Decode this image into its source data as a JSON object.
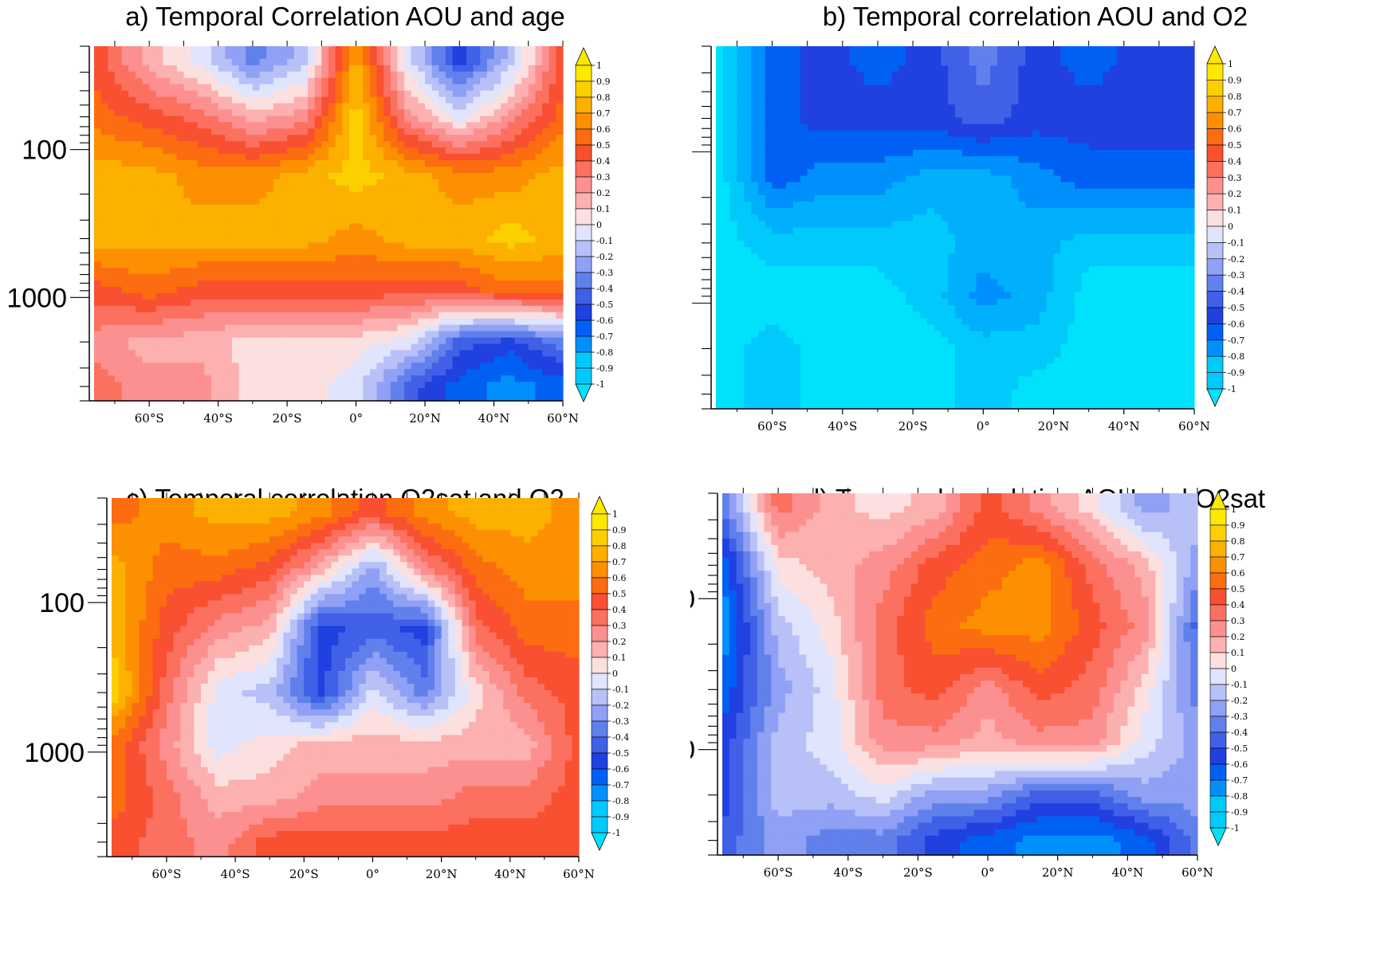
{
  "chart_data": [
    {
      "type": "heatmap",
      "title": "a) Temporal Correlation AOU and age",
      "xlabel": "",
      "ylabel": "",
      "x_ticks": [
        "60°S",
        "40°S",
        "20°S",
        "0°",
        "20°N",
        "40°N",
        "60°N"
      ],
      "x_tick_values": [
        -60,
        -40,
        -20,
        0,
        20,
        40,
        60
      ],
      "xlim": [
        -76,
        60
      ],
      "y_scale": "log",
      "y_ticks": [
        "100",
        "1000"
      ],
      "y_tick_values": [
        100,
        1000
      ],
      "ylim": [
        5000,
        20
      ],
      "y_inverted": true,
      "colorbar_ticks": [
        1,
        0.9,
        0.8,
        0.7,
        0.6,
        0.5,
        0.4,
        0.3,
        0.2,
        0.1,
        0,
        -0.1,
        -0.2,
        -0.3,
        -0.4,
        -0.5,
        -0.6,
        -0.7,
        -0.8,
        -0.9,
        -1
      ],
      "lat": [
        -75,
        -60,
        -45,
        -30,
        -15,
        0,
        15,
        30,
        45,
        60
      ],
      "depth": [
        25,
        60,
        150,
        400,
        900,
        2000,
        4000
      ],
      "values": [
        [
          0.5,
          0.2,
          0.0,
          -0.3,
          -0.1,
          0.8,
          0.0,
          -0.5,
          -0.1,
          0.5
        ],
        [
          0.6,
          0.5,
          0.4,
          0.2,
          0.3,
          0.9,
          0.3,
          0.0,
          0.3,
          0.6
        ],
        [
          0.8,
          0.8,
          0.7,
          0.7,
          0.8,
          0.9,
          0.8,
          0.7,
          0.7,
          0.8
        ],
        [
          0.8,
          0.8,
          0.8,
          0.8,
          0.8,
          0.7,
          0.8,
          0.8,
          0.9,
          0.8
        ],
        [
          0.5,
          0.6,
          0.5,
          0.5,
          0.5,
          0.5,
          0.5,
          0.5,
          0.6,
          0.6
        ],
        [
          0.3,
          0.2,
          0.2,
          0.1,
          0.1,
          0.1,
          0.0,
          -0.4,
          -0.5,
          -0.3
        ],
        [
          0.4,
          0.3,
          0.3,
          0.1,
          0.1,
          0.0,
          -0.4,
          -0.6,
          -0.7,
          -0.6
        ]
      ]
    },
    {
      "type": "heatmap",
      "title": "b) Temporal correlation AOU and O2",
      "xlabel": "",
      "ylabel": "",
      "x_ticks": [
        "60°S",
        "40°S",
        "20°S",
        "0°",
        "20°N",
        "40°N",
        "60°N"
      ],
      "x_tick_values": [
        -60,
        -40,
        -20,
        0,
        20,
        40,
        60
      ],
      "xlim": [
        -76,
        60
      ],
      "y_scale": "log",
      "y_ticks": [
        "100",
        "1000"
      ],
      "y_tick_values": [
        100,
        1000
      ],
      "ylim": [
        5000,
        20
      ],
      "y_inverted": true,
      "colorbar_ticks": [
        1,
        0.9,
        0.8,
        0.7,
        0.6,
        0.5,
        0.4,
        0.3,
        0.2,
        0.1,
        0,
        -0.1,
        -0.2,
        -0.3,
        -0.4,
        -0.5,
        -0.6,
        -0.7,
        -0.8,
        -0.9,
        -1
      ],
      "lat": [
        -75,
        -60,
        -45,
        -30,
        -15,
        0,
        15,
        30,
        45,
        60
      ],
      "depth": [
        25,
        60,
        150,
        400,
        900,
        2000,
        4000
      ],
      "values": [
        [
          -1.0,
          -0.6,
          -0.5,
          -0.6,
          -0.5,
          -0.3,
          -0.5,
          -0.6,
          -0.5,
          -0.5
        ],
        [
          -1.0,
          -0.6,
          -0.5,
          -0.5,
          -0.5,
          -0.4,
          -0.5,
          -0.5,
          -0.5,
          -0.5
        ],
        [
          -1.0,
          -0.6,
          -0.7,
          -0.7,
          -0.8,
          -0.8,
          -0.7,
          -0.6,
          -0.6,
          -0.6
        ],
        [
          -1.0,
          -0.9,
          -0.9,
          -0.9,
          -0.9,
          -0.8,
          -0.8,
          -0.9,
          -0.9,
          -0.9
        ],
        [
          -1.0,
          -1.0,
          -1.0,
          -1.0,
          -0.9,
          -0.7,
          -0.8,
          -1.0,
          -1.0,
          -1.0
        ],
        [
          -1.0,
          -0.9,
          -1.0,
          -1.0,
          -1.0,
          -0.9,
          -0.9,
          -1.0,
          -1.0,
          -1.0
        ],
        [
          -1.0,
          -0.9,
          -1.0,
          -1.0,
          -1.0,
          -0.9,
          -1.0,
          -1.0,
          -1.0,
          -1.0
        ]
      ]
    },
    {
      "type": "heatmap",
      "title": "c) Temporal correlation O2sat and O2",
      "xlabel": "",
      "ylabel": "",
      "x_ticks": [
        "60°S",
        "40°S",
        "20°S",
        "0°",
        "20°N",
        "40°N",
        "60°N"
      ],
      "x_tick_values": [
        -60,
        -40,
        -20,
        0,
        20,
        40,
        60
      ],
      "xlim": [
        -76,
        60
      ],
      "y_scale": "log",
      "y_ticks": [
        "100",
        "1000"
      ],
      "y_tick_values": [
        100,
        1000
      ],
      "ylim": [
        5000,
        20
      ],
      "y_inverted": true,
      "colorbar_ticks": [
        1,
        0.9,
        0.8,
        0.7,
        0.6,
        0.5,
        0.4,
        0.3,
        0.2,
        0.1,
        0,
        -0.1,
        -0.2,
        -0.3,
        -0.4,
        -0.5,
        -0.6,
        -0.7,
        -0.8,
        -0.9,
        -1
      ],
      "lat": [
        -75,
        -60,
        -45,
        -30,
        -15,
        0,
        15,
        30,
        45,
        60
      ],
      "depth": [
        25,
        60,
        150,
        400,
        900,
        2000,
        4000
      ],
      "values": [
        [
          0.6,
          0.7,
          0.8,
          0.8,
          0.7,
          0.5,
          0.7,
          0.8,
          0.8,
          0.7
        ],
        [
          0.8,
          0.6,
          0.6,
          0.5,
          0.2,
          -0.2,
          0.3,
          0.6,
          0.7,
          0.7
        ],
        [
          0.8,
          0.5,
          0.3,
          0.2,
          -0.5,
          -0.4,
          -0.5,
          0.4,
          0.6,
          0.6
        ],
        [
          0.9,
          0.4,
          0.0,
          -0.1,
          -0.5,
          0.0,
          -0.3,
          0.1,
          0.4,
          0.5
        ],
        [
          0.6,
          0.3,
          0.0,
          0.1,
          0.2,
          0.2,
          0.2,
          0.2,
          0.2,
          0.5
        ],
        [
          0.6,
          0.4,
          0.2,
          0.2,
          0.3,
          0.3,
          0.3,
          0.4,
          0.4,
          0.5
        ],
        [
          0.5,
          0.4,
          0.3,
          0.5,
          0.5,
          0.5,
          0.5,
          0.5,
          0.5,
          0.5
        ]
      ]
    },
    {
      "type": "heatmap",
      "title": "d) Temporal correlation AOU and O2sat",
      "xlabel": "",
      "ylabel": "",
      "x_ticks": [
        "60°S",
        "40°S",
        "20°S",
        "0°",
        "20°N",
        "40°N",
        "60°N"
      ],
      "x_tick_values": [
        -60,
        -40,
        -20,
        0,
        20,
        40,
        60
      ],
      "xlim": [
        -76,
        60
      ],
      "y_scale": "log",
      "y_ticks": [
        "100",
        "1000"
      ],
      "y_tick_values": [
        100,
        1000
      ],
      "ylim": [
        5000,
        20
      ],
      "y_inverted": true,
      "colorbar_ticks": [
        1,
        0.9,
        0.8,
        0.7,
        0.6,
        0.5,
        0.4,
        0.3,
        0.2,
        0.1,
        0,
        -0.1,
        -0.2,
        -0.3,
        -0.4,
        -0.5,
        -0.6,
        -0.7,
        -0.8,
        -0.9,
        -1
      ],
      "lat": [
        -75,
        -60,
        -45,
        -30,
        -15,
        0,
        15,
        30,
        45,
        60
      ],
      "depth": [
        25,
        60,
        150,
        400,
        900,
        2000,
        4000
      ],
      "values": [
        [
          -0.3,
          0.4,
          0.2,
          0.1,
          0.2,
          0.5,
          0.3,
          0.1,
          -0.2,
          -0.1
        ],
        [
          -0.6,
          0.1,
          0.2,
          0.3,
          0.5,
          0.6,
          0.7,
          0.4,
          0.2,
          -0.2
        ],
        [
          -0.7,
          -0.1,
          0.1,
          0.4,
          0.6,
          0.7,
          0.7,
          0.5,
          0.3,
          -0.4
        ],
        [
          -0.6,
          -0.2,
          0.0,
          0.4,
          0.5,
          0.3,
          0.5,
          0.4,
          0.1,
          -0.3
        ],
        [
          -0.5,
          -0.1,
          0.0,
          0.3,
          0.3,
          0.2,
          0.3,
          0.3,
          0.0,
          -0.2
        ],
        [
          -0.5,
          -0.1,
          -0.1,
          0.0,
          -0.2,
          -0.2,
          -0.4,
          -0.4,
          -0.2,
          -0.2
        ],
        [
          -0.4,
          -0.2,
          -0.3,
          -0.3,
          -0.5,
          -0.6,
          -0.7,
          -0.7,
          -0.6,
          -0.3
        ]
      ]
    }
  ]
}
